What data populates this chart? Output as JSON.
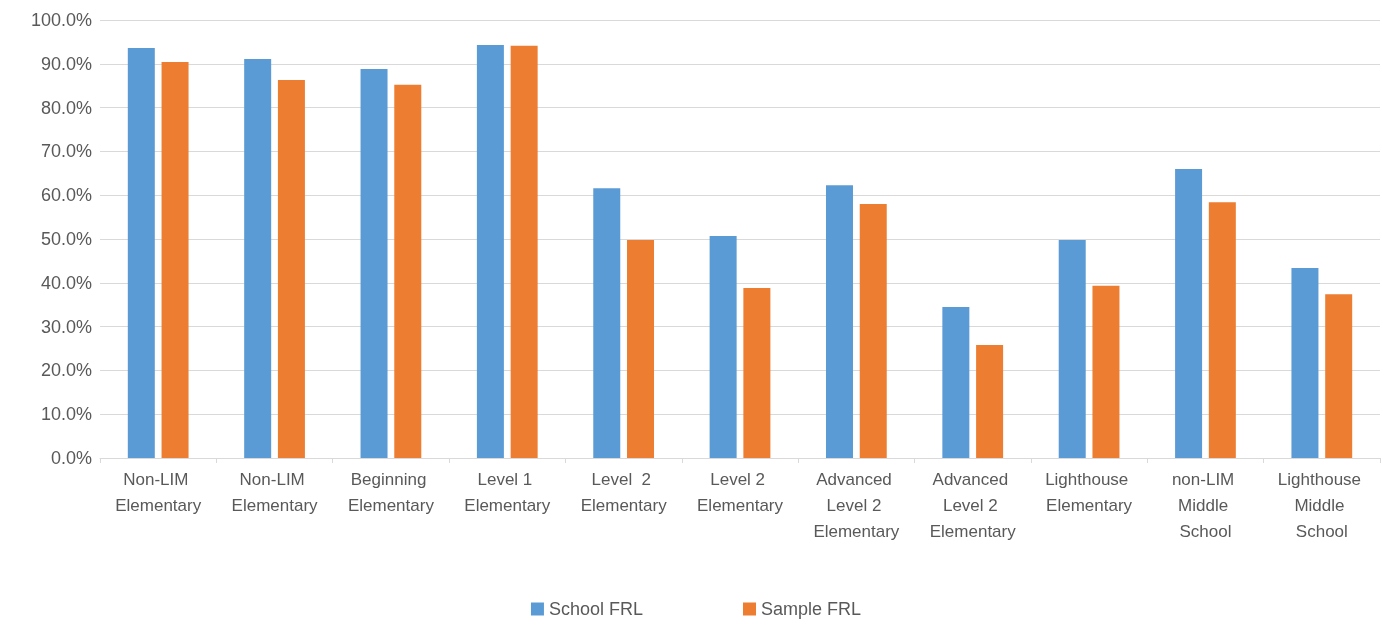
{
  "chart_data": {
    "type": "bar",
    "categories": [
      "Non-LIM Elementary",
      "Non-LIM Elementary",
      "Beginning Elementary",
      "Level 1 Elementary",
      "Level  2 Elementary",
      "Level 2 Elementary",
      "Advanced Level 2 Elementary",
      "Advanced Level 2 Elementary",
      "Lighthouse Elementary",
      "non-LIM Middle School",
      "Lighthouse Middle School"
    ],
    "series": [
      {
        "name": "School FRL",
        "color": "#5b9bd5",
        "values": [
          93.6,
          91.1,
          88.8,
          94.3,
          61.6,
          50.7,
          62.3,
          34.5,
          49.8,
          66.0,
          43.4
        ]
      },
      {
        "name": "Sample FRL",
        "color": "#ed7d31",
        "values": [
          90.4,
          86.3,
          85.2,
          94.1,
          49.8,
          38.8,
          58.0,
          25.8,
          39.3,
          58.4,
          37.4
        ]
      }
    ],
    "ylim": [
      0,
      100
    ],
    "yticks": [
      {
        "value": 0,
        "label": "0.0%"
      },
      {
        "value": 10,
        "label": "10.0%"
      },
      {
        "value": 20,
        "label": "20.0%"
      },
      {
        "value": 30,
        "label": "30.0%"
      },
      {
        "value": 40,
        "label": "40.0%"
      },
      {
        "value": 50,
        "label": "50.0%"
      },
      {
        "value": 60,
        "label": "60.0%"
      },
      {
        "value": 70,
        "label": "70.0%"
      },
      {
        "value": 80,
        "label": "80.0%"
      },
      {
        "value": 90,
        "label": "90.0%"
      },
      {
        "value": 100,
        "label": "100.0%"
      }
    ],
    "grid": true,
    "legend": "bottom"
  }
}
